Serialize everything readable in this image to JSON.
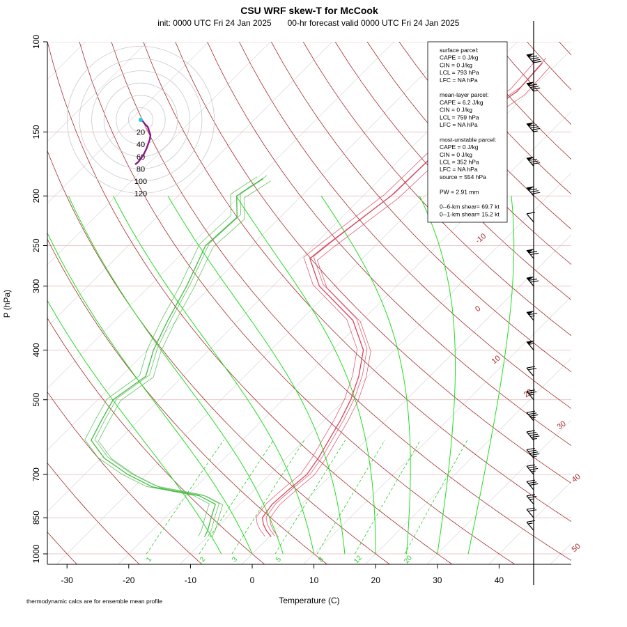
{
  "chart_data": {
    "type": "line",
    "title": "CSU WRF skew-T for McCook",
    "subtitle_left": "init: 0000 UTC Fri 24 Jan 2025",
    "subtitle_right": "00-hr forecast valid 0000 UTC Fri 24 Jan 2025",
    "xlabel": "Temperature (C)",
    "ylabel": "P (hPa)",
    "x_ticks": [
      "-30",
      "-20",
      "-10",
      "0",
      "10",
      "20",
      "30",
      "40"
    ],
    "y_ticks": [
      "100",
      "150",
      "200",
      "250",
      "300",
      "400",
      "500",
      "700",
      "850",
      "1000"
    ],
    "xlim": [
      -33,
      46
    ],
    "ylim": [
      1050,
      100
    ],
    "isotherm_labels": [
      "-10",
      "0",
      "10",
      "20",
      "30",
      "40",
      "50"
    ],
    "mixing_ratio_labels": [
      "1",
      "2",
      "3",
      "5",
      "8",
      "12",
      "20"
    ],
    "footnote": "thermodynamic calcs are for ensemble mean profile",
    "stats_lines": [
      "surface parcel:",
      "CAPE = 0 J/kg",
      "CIN = 0 J/kg",
      "LCL = 793 hPa",
      "LFC = NA hPa",
      "",
      "mean-layer parcel:",
      "CAPE = 6.2 J/kg",
      "CIN = 0 J/kg",
      "LCL = 759 hPa",
      "LFC = NA hPa",
      "",
      "most-unstable parcel:",
      "CAPE = 0 J/kg",
      "CIN = 0 J/kg",
      "LCL = 352 hPa",
      "LFC = NA hPa",
      "source = 554 hPa",
      "",
      "PW =  2.91 mm",
      "",
      "0--6-km shear= 69.7 kt",
      "0--1-km shear= 15.2 kt"
    ],
    "hodograph_ring_labels": [
      "20",
      "40",
      "60",
      "80",
      "100",
      "120"
    ],
    "temperature_profile": [
      {
        "p": 926,
        "t": 0.3
      },
      {
        "p": 900,
        "t": -1.5
      },
      {
        "p": 875,
        "t": -3.0
      },
      {
        "p": 850,
        "t": -4.2
      },
      {
        "p": 800,
        "t": -4.8
      },
      {
        "p": 750,
        "t": -4.5
      },
      {
        "p": 700,
        "t": -4.0
      },
      {
        "p": 650,
        "t": -4.8
      },
      {
        "p": 600,
        "t": -6.0
      },
      {
        "p": 550,
        "t": -7.3
      },
      {
        "p": 500,
        "t": -9.0
      },
      {
        "p": 450,
        "t": -11.5
      },
      {
        "p": 400,
        "t": -15.0
      },
      {
        "p": 350,
        "t": -21.5
      },
      {
        "p": 300,
        "t": -32.5
      },
      {
        "p": 265,
        "t": -38.5
      },
      {
        "p": 250,
        "t": -38.0
      },
      {
        "p": 200,
        "t": -35.5
      },
      {
        "p": 150,
        "t": -35.0
      },
      {
        "p": 125,
        "t": -32.0
      },
      {
        "p": 110,
        "t": -32.5
      }
    ],
    "dewpoint_profile": [
      {
        "p": 926,
        "t": -10.5
      },
      {
        "p": 900,
        "t": -11.0
      },
      {
        "p": 850,
        "t": -12.5
      },
      {
        "p": 800,
        "t": -14.0
      },
      {
        "p": 770,
        "t": -18.0
      },
      {
        "p": 740,
        "t": -27.0
      },
      {
        "p": 700,
        "t": -33.0
      },
      {
        "p": 650,
        "t": -39.5
      },
      {
        "p": 600,
        "t": -44.5
      },
      {
        "p": 550,
        "t": -46.0
      },
      {
        "p": 500,
        "t": -47.5
      },
      {
        "p": 450,
        "t": -46.0
      },
      {
        "p": 400,
        "t": -49.0
      },
      {
        "p": 350,
        "t": -51.5
      },
      {
        "p": 300,
        "t": -54.0
      },
      {
        "p": 250,
        "t": -57.5
      },
      {
        "p": 220,
        "t": -57.0
      },
      {
        "p": 200,
        "t": -60.5
      },
      {
        "p": 185,
        "t": -59.0
      }
    ],
    "wind_barbs_kt": [
      {
        "p": 110,
        "speed": 90
      },
      {
        "p": 125,
        "speed": 85
      },
      {
        "p": 150,
        "speed": 85
      },
      {
        "p": 175,
        "speed": 80
      },
      {
        "p": 200,
        "speed": 80
      },
      {
        "p": 225,
        "speed": 10
      },
      {
        "p": 265,
        "speed": 70
      },
      {
        "p": 300,
        "speed": 70
      },
      {
        "p": 350,
        "speed": 65
      },
      {
        "p": 400,
        "speed": 55
      },
      {
        "p": 450,
        "speed": 20
      },
      {
        "p": 500,
        "speed": 25
      },
      {
        "p": 550,
        "speed": 35
      },
      {
        "p": 600,
        "speed": 45
      },
      {
        "p": 650,
        "speed": 45
      },
      {
        "p": 700,
        "speed": 35
      },
      {
        "p": 750,
        "speed": 30
      },
      {
        "p": 800,
        "speed": 25
      },
      {
        "p": 850,
        "speed": 20
      },
      {
        "p": 900,
        "speed": 15
      }
    ],
    "grid": true
  },
  "colors": {
    "temperature": "#d8435a",
    "dewpoint": "#44bb44",
    "isotherm": "#dddddd",
    "dry_adiabat": "#a52a2a",
    "moist_adiabat": "#22dd22",
    "mixing_ratio": "#22cc22",
    "isobar": "#e4b8b8",
    "hodograph": "#8b1a8b"
  }
}
